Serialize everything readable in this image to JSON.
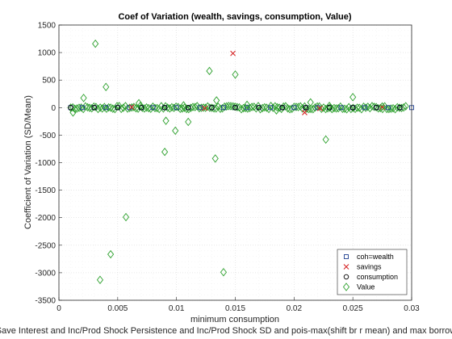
{
  "chart_data": {
    "type": "scatter",
    "title": "Coef of Variation (wealth, savings, consumption, Value)",
    "xlabel": "minimum consumption",
    "ylabel": "Coefficient of Variation (SD/Mean)",
    "bottom_text": "Save Interest and Inc/Prod Shock Persistence and Inc/Prod Shock SD and pois-max(shift br r mean) and max borrow",
    "xlim": [
      0,
      0.03
    ],
    "ylim": [
      -3500,
      1500
    ],
    "xticks": [
      "0",
      "0.005",
      "0.01",
      "0.015",
      "0.02",
      "0.025",
      "0.03"
    ],
    "yticks": [
      "-3500",
      "-3000",
      "-2500",
      "-2000",
      "-1500",
      "-1000",
      "-500",
      "0",
      "500",
      "1000",
      "1500"
    ],
    "grid": true,
    "legend_position": "bottom-right",
    "series": [
      {
        "name": "coh=wealth",
        "marker": "square",
        "color": "#1f3f8f",
        "x": [
          0.001,
          0.002,
          0.003,
          0.004,
          0.005,
          0.006,
          0.007,
          0.008,
          0.009,
          0.01,
          0.011,
          0.012,
          0.013,
          0.014,
          0.015,
          0.016,
          0.017,
          0.018,
          0.019,
          0.02,
          0.021,
          0.022,
          0.023,
          0.024,
          0.025,
          0.026,
          0.027,
          0.028,
          0.029,
          0.03
        ],
        "y": [
          0,
          0,
          0,
          0,
          0,
          0,
          0,
          0,
          0,
          0,
          0,
          0,
          0,
          0,
          0,
          0,
          0,
          0,
          0,
          0,
          0,
          0,
          0,
          0,
          0,
          0,
          0,
          0,
          0,
          0
        ]
      },
      {
        "name": "savings",
        "marker": "x",
        "color": "#d62728",
        "x": [
          0.0148,
          0.0209,
          0.0222,
          0.0062,
          0.0124,
          0.0275
        ],
        "y": [
          985,
          -90,
          -15,
          10,
          -10,
          5
        ]
      },
      {
        "name": "consumption",
        "marker": "circle",
        "color": "#000000",
        "x": [
          0.001,
          0.003,
          0.005,
          0.007,
          0.009,
          0.011,
          0.013,
          0.015,
          0.017,
          0.019,
          0.021,
          0.023,
          0.025,
          0.027,
          0.029
        ],
        "y": [
          0,
          0,
          0,
          0,
          0,
          0,
          0,
          0,
          0,
          0,
          0,
          0,
          0,
          0,
          0
        ]
      },
      {
        "name": "Value",
        "marker": "diamond",
        "color": "#2ca02c",
        "x": [
          0.0031,
          0.004,
          0.0021,
          0.0128,
          0.015,
          0.0134,
          0.025,
          0.011,
          0.0099,
          0.0091,
          0.009,
          0.0227,
          0.0133,
          0.0057,
          0.0044,
          0.0035,
          0.014,
          0.0214,
          0.0106,
          0.0068,
          0.0012,
          0.016,
          0.0185,
          0.023,
          0.0275
        ],
        "y": [
          1160,
          375,
          175,
          665,
          600,
          130,
          190,
          -260,
          -420,
          -240,
          -805,
          -580,
          -925,
          -1990,
          -2665,
          -3130,
          -2990,
          95,
          40,
          80,
          -90,
          50,
          -50,
          30,
          20
        ],
        "dense_band": {
          "x_from": 0.001,
          "x_to": 0.0295,
          "y_spread": 30
        }
      }
    ]
  }
}
